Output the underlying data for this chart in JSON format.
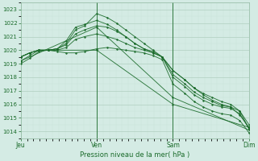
{
  "xlabel": "Pression niveau de la mer( hPa )",
  "bg_color": "#d4ebe4",
  "grid_color_major": "#b0cfbf",
  "grid_color_minor": "#c8e2d8",
  "line_color": "#1a6b2a",
  "tick_color": "#1a6b2a",
  "label_color": "#1a6b2a",
  "spine_color": "#90b8a0",
  "ylim": [
    1013.5,
    1023.5
  ],
  "yticks": [
    1014,
    1015,
    1016,
    1017,
    1018,
    1019,
    1020,
    1021,
    1022,
    1023
  ],
  "day_labels": [
    "Jeu",
    "Ven",
    "Sam",
    "Dim"
  ],
  "day_positions": [
    0.0,
    0.333,
    0.667,
    1.0
  ],
  "series": [
    {
      "x": [
        0.0,
        0.04,
        0.08,
        0.12,
        0.16,
        0.2,
        0.24,
        0.28,
        0.333,
        0.38,
        0.42,
        0.46,
        0.5,
        0.54,
        0.58,
        0.62,
        0.667,
        0.72,
        0.76,
        0.8,
        0.84,
        0.88,
        0.92,
        0.96,
        1.0
      ],
      "y": [
        1019.5,
        1019.8,
        1020.0,
        1020.0,
        1020.1,
        1020.5,
        1021.5,
        1021.8,
        1022.7,
        1022.4,
        1022.0,
        1021.5,
        1021.0,
        1020.5,
        1020.0,
        1019.5,
        1018.5,
        1017.8,
        1017.2,
        1016.8,
        1016.5,
        1016.2,
        1016.0,
        1015.5,
        1014.2
      ]
    },
    {
      "x": [
        0.0,
        0.04,
        0.08,
        0.12,
        0.16,
        0.2,
        0.24,
        0.28,
        0.333,
        0.38,
        0.42,
        0.46,
        0.5,
        0.54,
        0.58,
        0.62,
        0.667,
        0.72,
        0.76,
        0.8,
        0.84,
        0.88,
        0.92,
        0.96,
        1.0
      ],
      "y": [
        1019.5,
        1019.8,
        1020.0,
        1020.0,
        1020.1,
        1020.7,
        1021.7,
        1021.9,
        1022.2,
        1021.9,
        1021.5,
        1021.0,
        1020.5,
        1020.1,
        1019.8,
        1019.5,
        1018.5,
        1017.8,
        1017.2,
        1016.7,
        1016.3,
        1016.0,
        1015.8,
        1015.2,
        1014.3
      ]
    },
    {
      "x": [
        0.0,
        0.04,
        0.08,
        0.12,
        0.16,
        0.2,
        0.24,
        0.28,
        0.333,
        0.38,
        0.42,
        0.46,
        0.5,
        0.54,
        0.58,
        0.62,
        0.667,
        0.72,
        0.76,
        0.8,
        0.84,
        0.88,
        0.92,
        0.96,
        1.0
      ],
      "y": [
        1019.5,
        1019.8,
        1020.0,
        1020.0,
        1020.1,
        1020.4,
        1021.2,
        1021.5,
        1021.8,
        1021.7,
        1021.4,
        1021.0,
        1020.5,
        1020.1,
        1019.9,
        1019.5,
        1018.2,
        1017.5,
        1016.9,
        1016.5,
        1016.2,
        1015.9,
        1015.8,
        1015.5,
        1014.5
      ]
    },
    {
      "x": [
        0.0,
        0.04,
        0.08,
        0.12,
        0.16,
        0.2,
        0.24,
        0.28,
        0.333,
        0.38,
        0.42,
        0.46,
        0.5,
        0.54,
        0.58,
        0.62,
        0.667,
        0.72,
        0.76,
        0.8,
        0.84,
        0.88,
        0.92,
        0.96,
        1.0
      ],
      "y": [
        1019.5,
        1019.8,
        1020.0,
        1020.0,
        1020.0,
        1020.2,
        1020.8,
        1021.0,
        1021.2,
        1021.0,
        1020.8,
        1020.5,
        1020.2,
        1020.0,
        1019.8,
        1019.5,
        1018.0,
        1017.3,
        1016.7,
        1016.3,
        1016.0,
        1015.8,
        1015.7,
        1015.3,
        1014.2
      ]
    },
    {
      "x": [
        0.0,
        0.04,
        0.08,
        0.12,
        0.16,
        0.2,
        0.24,
        0.28,
        0.333,
        0.38,
        0.42,
        0.46,
        0.5,
        0.54,
        0.58,
        0.62,
        0.667,
        0.72,
        0.76,
        0.8,
        0.84,
        0.88,
        0.92,
        0.96,
        1.0
      ],
      "y": [
        1019.0,
        1019.4,
        1019.9,
        1020.0,
        1019.9,
        1019.8,
        1019.8,
        1019.9,
        1020.1,
        1020.2,
        1020.1,
        1020.0,
        1019.9,
        1019.8,
        1019.6,
        1019.3,
        1017.5,
        1016.8,
        1016.2,
        1015.8,
        1015.5,
        1015.3,
        1015.2,
        1014.8,
        1013.9
      ]
    },
    {
      "x": [
        0.0,
        0.04,
        0.08,
        0.12,
        0.333,
        0.667,
        1.0
      ],
      "y": [
        1019.2,
        1019.6,
        1020.0,
        1020.0,
        1020.0,
        1016.0,
        1014.3
      ]
    },
    {
      "x": [
        0.0,
        0.333,
        0.667,
        1.0
      ],
      "y": [
        1019.2,
        1021.7,
        1016.5,
        1014.1
      ]
    }
  ]
}
